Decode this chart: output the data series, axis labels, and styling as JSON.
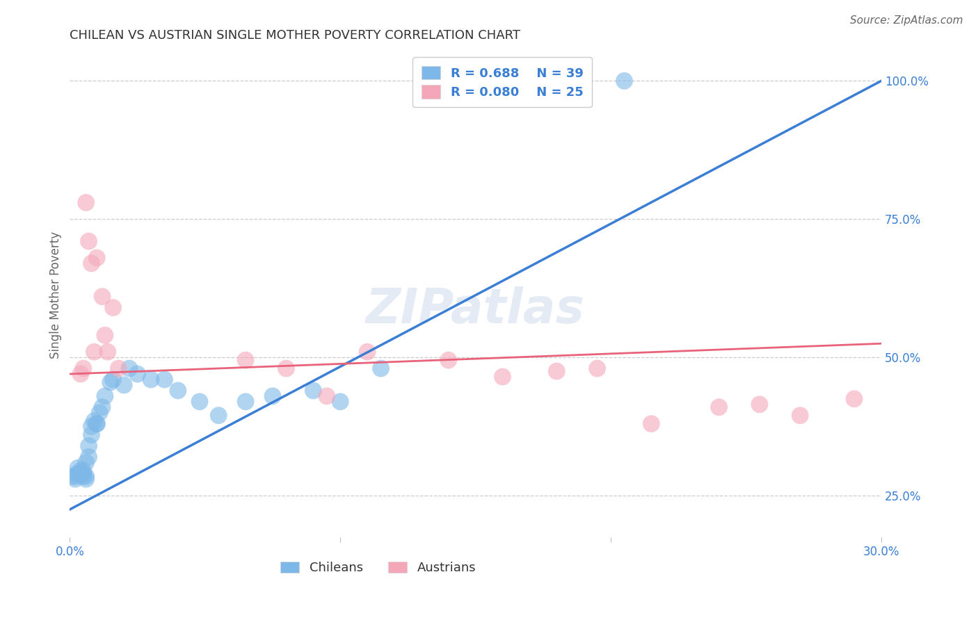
{
  "title": "CHILEAN VS AUSTRIAN SINGLE MOTHER POVERTY CORRELATION CHART",
  "source": "Source: ZipAtlas.com",
  "ylabel": "Single Mother Poverty",
  "xlim": [
    0.0,
    0.3
  ],
  "ylim": [
    0.175,
    1.05
  ],
  "x_ticks": [
    0.0,
    0.1,
    0.2,
    0.3
  ],
  "y_ticks_right": [
    0.25,
    0.5,
    0.75,
    1.0
  ],
  "y_tick_labels_right": [
    "25.0%",
    "50.0%",
    "75.0%",
    "100.0%"
  ],
  "chilean_color": "#7EB8E8",
  "austrian_color": "#F4A7B9",
  "chilean_line_color": "#3A7FD5",
  "austrian_line_color": "#E8627A",
  "R_chilean": 0.688,
  "N_chilean": 39,
  "R_austrian": 0.08,
  "N_austrian": 25,
  "chilean_line_x0": 0.0,
  "chilean_line_y0": 0.225,
  "chilean_line_x1": 0.3,
  "chilean_line_y1": 1.0,
  "austrian_line_x0": 0.0,
  "austrian_line_y0": 0.47,
  "austrian_line_x1": 0.3,
  "austrian_line_y1": 0.525,
  "chilean_x": [
    0.001,
    0.002,
    0.002,
    0.003,
    0.003,
    0.004,
    0.004,
    0.005,
    0.005,
    0.005,
    0.006,
    0.006,
    0.006,
    0.007,
    0.007,
    0.008,
    0.008,
    0.009,
    0.01,
    0.01,
    0.011,
    0.012,
    0.013,
    0.015,
    0.016,
    0.02,
    0.022,
    0.025,
    0.03,
    0.035,
    0.04,
    0.048,
    0.055,
    0.065,
    0.075,
    0.09,
    0.1,
    0.115,
    0.205
  ],
  "chilean_y": [
    0.285,
    0.28,
    0.285,
    0.29,
    0.3,
    0.29,
    0.295,
    0.285,
    0.29,
    0.295,
    0.28,
    0.285,
    0.31,
    0.32,
    0.34,
    0.36,
    0.375,
    0.385,
    0.38,
    0.38,
    0.4,
    0.41,
    0.43,
    0.455,
    0.46,
    0.45,
    0.48,
    0.47,
    0.46,
    0.46,
    0.44,
    0.42,
    0.395,
    0.42,
    0.43,
    0.44,
    0.42,
    0.48,
    1.0
  ],
  "austrian_x": [
    0.004,
    0.005,
    0.006,
    0.007,
    0.008,
    0.009,
    0.01,
    0.012,
    0.013,
    0.014,
    0.016,
    0.018,
    0.065,
    0.08,
    0.095,
    0.11,
    0.14,
    0.16,
    0.18,
    0.195,
    0.215,
    0.24,
    0.255,
    0.27,
    0.29
  ],
  "austrian_y": [
    0.47,
    0.48,
    0.78,
    0.71,
    0.67,
    0.51,
    0.68,
    0.61,
    0.54,
    0.51,
    0.59,
    0.48,
    0.495,
    0.48,
    0.43,
    0.51,
    0.495,
    0.465,
    0.475,
    0.48,
    0.38,
    0.41,
    0.415,
    0.395,
    0.425
  ],
  "watermark": "ZIPatlas",
  "background_color": "#FFFFFF",
  "grid_color": "#CCCCCC",
  "legend_color": "#3A7FD5"
}
